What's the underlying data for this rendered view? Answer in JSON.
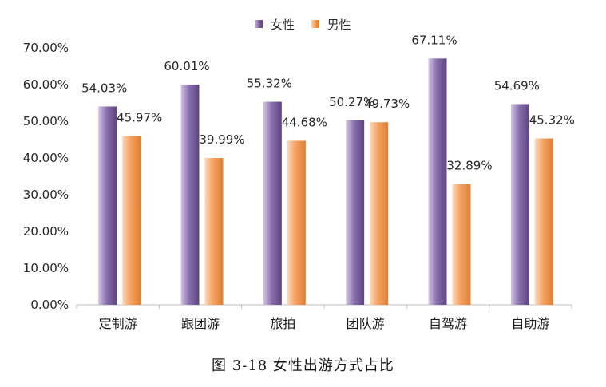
{
  "chart_data": {
    "type": "bar",
    "title": "",
    "xlabel": "",
    "ylabel": "",
    "categories": [
      "定制游",
      "跟团游",
      "旅拍",
      "团队游",
      "自驾游",
      "自助游"
    ],
    "series": [
      {
        "name": "女性",
        "values": [
          54.03,
          60.01,
          55.32,
          50.27,
          67.11,
          54.69
        ],
        "labels": [
          "54.03%",
          "60.01%",
          "55.32%",
          "50.27%",
          "67.11%",
          "54.69%"
        ],
        "color": "#8064A2"
      },
      {
        "name": "男性",
        "values": [
          45.97,
          39.99,
          44.68,
          49.73,
          32.89,
          45.32
        ],
        "labels": [
          "45.97%",
          "39.99%",
          "44.68%",
          "49.73%",
          "32.89%",
          "45.32%"
        ],
        "color": "#F79646"
      }
    ],
    "ylim": [
      0,
      70
    ],
    "yticks": [
      0,
      10,
      20,
      30,
      40,
      50,
      60,
      70
    ],
    "ytick_labels": [
      "0.00%",
      "10.00%",
      "20.00%",
      "30.00%",
      "40.00%",
      "50.00%",
      "60.00%",
      "70.00%"
    ],
    "grid": false,
    "legend": "top-center"
  },
  "caption": "图 3-18  女性出游方式占比"
}
